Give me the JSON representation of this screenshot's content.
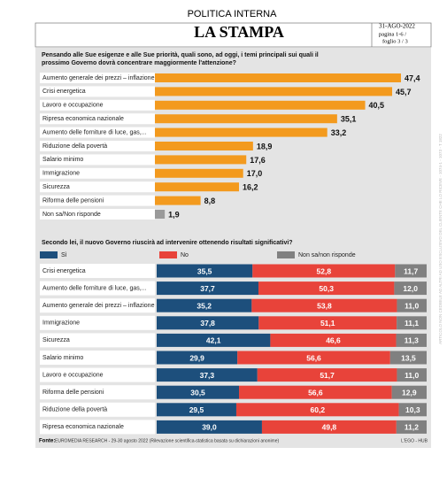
{
  "header": {
    "section": "POLITICA INTERNA",
    "masthead": "LA STAMPA",
    "date": "31-AGO-2022",
    "page": "pagina 1-6 /",
    "sheet": "foglio 3 / 3"
  },
  "footer": {
    "source_label": "Fonte:",
    "source": "EUROMEDIA RESEARCH - 29-30 agosto 2022 (Rilevazione scientifica-statistica basata su dichiarazioni anonime)",
    "credit": "L'EGO - HUB"
  },
  "watermark": "ARTICOLO NON CEDIBILE AD ALTRI AD USO ESCLUSIVO DEL CLIENTE CHE LO RICEVE - 1074-1 - 1073 - T 1822",
  "chart_data": [
    {
      "type": "bar",
      "title": "Pensando alle Sue esigenze e alle Sue priorità, quali sono, ad oggi, i temi principali sui quali il prossimo Governo dovrà concentrare maggiormente l'attenzione?",
      "categories": [
        "Aumento generale dei prezzi – inflazione",
        "Crisi energetica",
        "Lavoro e occupazione",
        "Ripresa economica nazionale",
        "Aumento delle forniture di luce, gas,...",
        "Riduzione della povertà",
        "Salario minimo",
        "Immigrazione",
        "Sicurezza",
        "Riforma delle pensioni",
        "Non sa/Non risponde"
      ],
      "values": [
        47.4,
        45.7,
        40.5,
        35.1,
        33.2,
        18.9,
        17.6,
        17.0,
        16.2,
        8.8,
        1.9
      ],
      "value_labels": [
        "47,4",
        "45,7",
        "40,5",
        "35,1",
        "33,2",
        "18,9",
        "17,6",
        "17,0",
        "16,2",
        "8,8",
        "1,9"
      ],
      "colors": [
        "#f39a1e",
        "#f39a1e",
        "#f39a1e",
        "#f39a1e",
        "#f39a1e",
        "#f39a1e",
        "#f39a1e",
        "#f39a1e",
        "#f39a1e",
        "#f39a1e",
        "#9a9a9a"
      ]
    },
    {
      "type": "stacked_bar",
      "title": "Secondo lei, il nuovo Governo riuscirà ad intervenire ottenendo risultati significativi?",
      "categories": [
        "Crisi energetica",
        "Aumento delle forniture di luce, gas,...",
        "Aumento generale dei prezzi – inflazione",
        "Immigrazione",
        "Sicurezza",
        "Salario minimo",
        "Lavoro e occupazione",
        "Riforma delle pensioni",
        "Riduzione della povertà",
        "Ripresa economica nazionale"
      ],
      "series": [
        {
          "name": "Sì",
          "color": "#1d4f7c",
          "values": [
            35.5,
            37.7,
            35.2,
            37.8,
            42.1,
            29.9,
            37.3,
            30.5,
            29.5,
            39.0
          ],
          "value_labels": [
            "35,5",
            "37,7",
            "35,2",
            "37,8",
            "42,1",
            "29,9",
            "37,3",
            "30,5",
            "29,5",
            "39,0"
          ]
        },
        {
          "name": "No",
          "color": "#e8433a",
          "values": [
            52.8,
            50.3,
            53.8,
            51.1,
            46.6,
            56.6,
            51.7,
            56.6,
            60.2,
            49.8
          ],
          "value_labels": [
            "52,8",
            "50,3",
            "53,8",
            "51,1",
            "46,6",
            "56,6",
            "51,7",
            "56,6",
            "60,2",
            "49,8"
          ]
        },
        {
          "name": "Non sa/non risponde",
          "color": "#808080",
          "values": [
            11.7,
            12.0,
            11.0,
            11.1,
            11.3,
            13.5,
            11.0,
            12.9,
            10.3,
            11.2
          ],
          "value_labels": [
            "11,7",
            "12,0",
            "11,0",
            "11,1",
            "11,3",
            "13,5",
            "11,0",
            "12,9",
            "10,3",
            "11,2"
          ]
        }
      ]
    }
  ]
}
